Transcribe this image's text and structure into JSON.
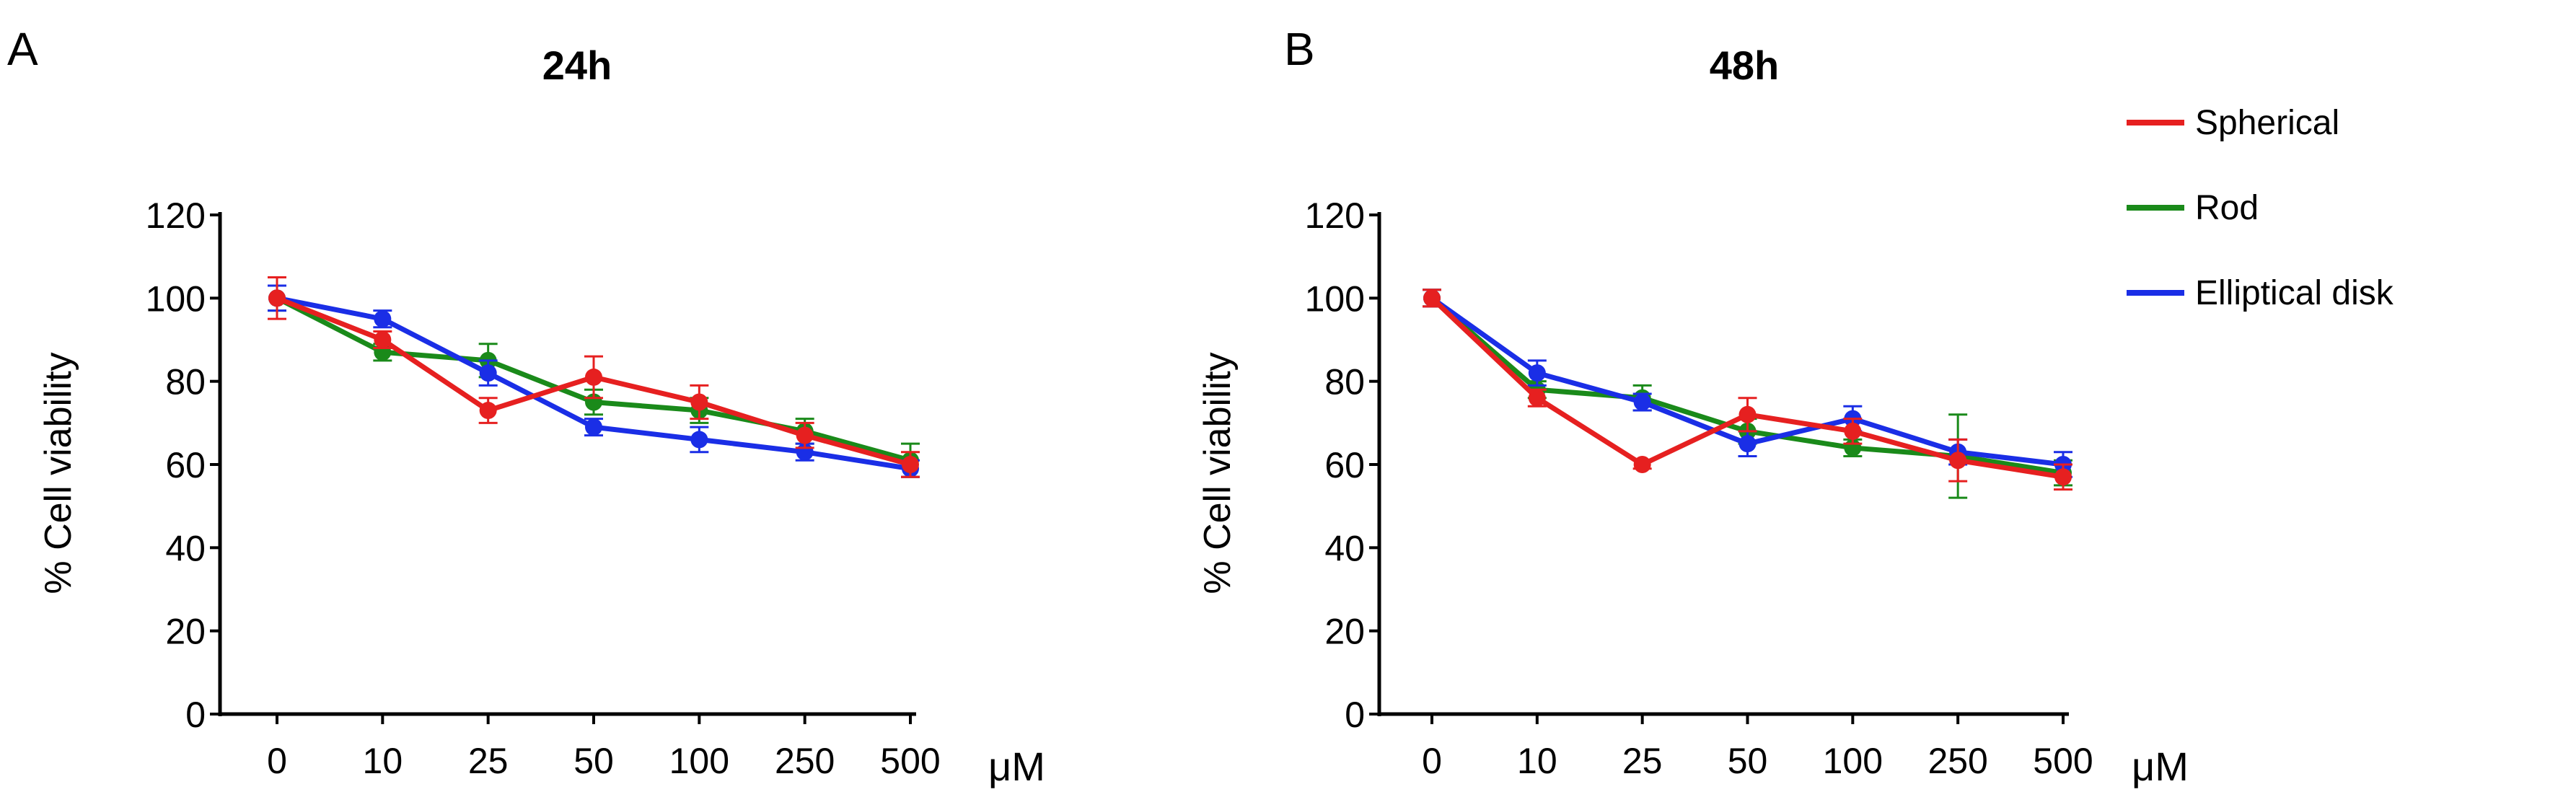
{
  "chart_data": [
    {
      "type": "line",
      "panel_label": "A",
      "title": "24h",
      "xlabel": "",
      "x_unit": "μM",
      "ylabel": "% Cell viability",
      "ylim": [
        0,
        120
      ],
      "yticks": [
        "0",
        "20",
        "40",
        "60",
        "80",
        "100",
        "120"
      ],
      "categories": [
        "0",
        "10",
        "25",
        "50",
        "100",
        "250",
        "500"
      ],
      "series": [
        {
          "name": "Rod",
          "color": "#1a8a1a",
          "values": [
            100,
            87,
            85,
            75,
            73,
            68,
            61
          ],
          "errors": [
            3,
            2,
            4,
            3,
            3,
            3,
            4
          ]
        },
        {
          "name": "Elliptical disk",
          "color": "#1a2ee6",
          "values": [
            100,
            95,
            82,
            69,
            66,
            63,
            59
          ],
          "errors": [
            3,
            2,
            3,
            2,
            3,
            2,
            2
          ]
        },
        {
          "name": "Spherical",
          "color": "#e62020",
          "values": [
            100,
            90,
            73,
            81,
            75,
            67,
            60
          ],
          "errors": [
            5,
            2,
            3,
            5,
            4,
            3,
            3
          ]
        }
      ]
    },
    {
      "type": "line",
      "panel_label": "B",
      "title": "48h",
      "xlabel": "",
      "x_unit": "μM",
      "ylabel": "% Cell viability",
      "ylim": [
        0,
        120
      ],
      "yticks": [
        "0",
        "20",
        "40",
        "60",
        "80",
        "100",
        "120"
      ],
      "categories": [
        "0",
        "10",
        "25",
        "50",
        "100",
        "250",
        "500"
      ],
      "series": [
        {
          "name": "Rod",
          "color": "#1a8a1a",
          "values": [
            100,
            78,
            76,
            68,
            64,
            62,
            58
          ],
          "errors": [
            2,
            2,
            3,
            3,
            2,
            10,
            3
          ]
        },
        {
          "name": "Elliptical disk",
          "color": "#1a2ee6",
          "values": [
            100,
            82,
            75,
            65,
            71,
            63,
            60
          ],
          "errors": [
            2,
            3,
            2,
            3,
            3,
            3,
            3
          ]
        },
        {
          "name": "Spherical",
          "color": "#e62020",
          "values": [
            100,
            76,
            60,
            72,
            68,
            61,
            57
          ],
          "errors": [
            2,
            2,
            1,
            4,
            3,
            5,
            3
          ]
        }
      ]
    }
  ],
  "legend": {
    "entries": [
      {
        "label": "Spherical",
        "color": "#e62020"
      },
      {
        "label": "Rod",
        "color": "#1a8a1a"
      },
      {
        "label": "Elliptical disk",
        "color": "#1a2ee6"
      }
    ]
  }
}
